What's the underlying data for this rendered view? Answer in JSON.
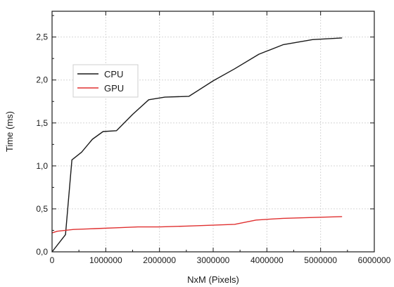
{
  "chart_data": {
    "type": "line",
    "xlabel": "NxM (Pixels)",
    "ylabel": "Time (ms)",
    "xlim": [
      0,
      6000000
    ],
    "ylim": [
      0,
      2.8
    ],
    "grid": true,
    "legend_position": "upper-left",
    "x_ticks": [
      0,
      1000000,
      2000000,
      3000000,
      4000000,
      5000000,
      6000000
    ],
    "x_tick_labels": [
      "0",
      "1000000",
      "2000000",
      "3000000",
      "4000000",
      "5000000",
      "6000000"
    ],
    "y_ticks": [
      0,
      0.5,
      1.0,
      1.5,
      2.0,
      2.5
    ],
    "y_tick_labels": [
      "0,0",
      "0,5",
      "1,0",
      "1,5",
      "2,0",
      "2,5"
    ],
    "series": [
      {
        "name": "CPU",
        "color": "#1a1a1a",
        "x": [
          0,
          250000,
          370000,
          550000,
          750000,
          950000,
          1200000,
          1500000,
          1800000,
          2100000,
          2550000,
          3000000,
          3400000,
          3850000,
          4300000,
          4850000,
          5400000
        ],
        "y": [
          0.0,
          0.2,
          1.07,
          1.16,
          1.31,
          1.4,
          1.41,
          1.6,
          1.77,
          1.8,
          1.81,
          1.99,
          2.13,
          2.3,
          2.41,
          2.47,
          2.49
        ]
      },
      {
        "name": "GPU",
        "color": "#e03030",
        "x": [
          0,
          100000,
          400000,
          800000,
          1200000,
          1600000,
          2000000,
          2500000,
          3000000,
          3400000,
          3800000,
          4300000,
          4900000,
          5400000
        ],
        "y": [
          0.22,
          0.24,
          0.26,
          0.27,
          0.28,
          0.29,
          0.29,
          0.3,
          0.31,
          0.32,
          0.37,
          0.39,
          0.4,
          0.41
        ]
      }
    ]
  }
}
